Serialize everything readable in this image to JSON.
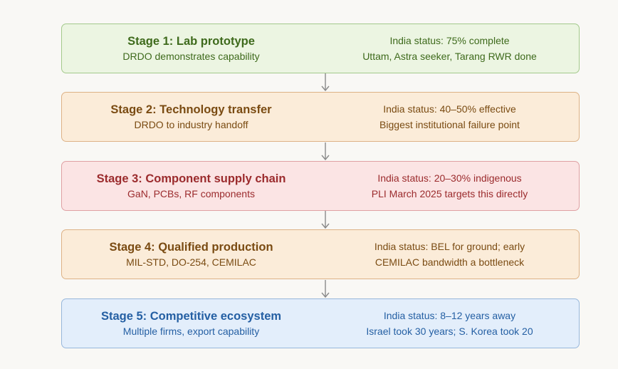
{
  "stages": [
    {
      "title": "Stage 1: Lab prototype",
      "subtitle": "DRDO demonstrates capability",
      "status": "India status: 75% complete",
      "note": "Uttam, Astra seeker, Tarang RWR done"
    },
    {
      "title": "Stage 2: Technology transfer",
      "subtitle": "DRDO to industry handoff",
      "status": "India status: 40–50% effective",
      "note": "Biggest institutional failure point"
    },
    {
      "title": "Stage 3: Component supply chain",
      "subtitle": "GaN, PCBs, RF components",
      "status": "India status: 20–30% indigenous",
      "note": "PLI March 2025 targets this directly"
    },
    {
      "title": "Stage 4: Qualified production",
      "subtitle": "MIL-STD, DO-254, CEMILAC",
      "status": "India status: BEL for ground; early",
      "note": "CEMILAC bandwidth a bottleneck"
    },
    {
      "title": "Stage 5: Competitive ecosystem",
      "subtitle": "Multiple firms, export capability",
      "status": "India status: 8–12 years away",
      "note": "Israel took 30 years; S. Korea took 20"
    }
  ],
  "colors": {
    "stage1": "#3e6a1c",
    "stage2": "#7a4b12",
    "stage3": "#9b2b2d",
    "stage4": "#7a4b12",
    "stage5": "#245fa3",
    "arrow": "#8a8a8a"
  }
}
